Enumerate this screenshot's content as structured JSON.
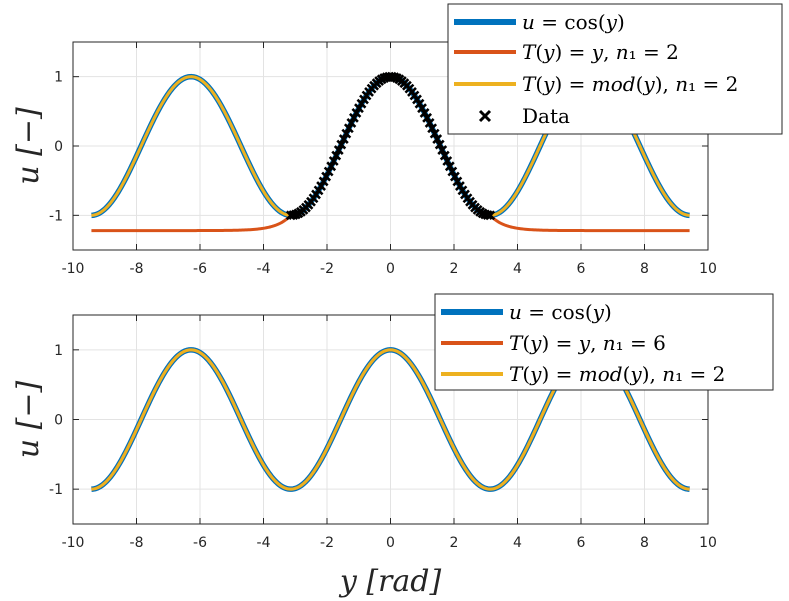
{
  "chart_data": [
    {
      "type": "line",
      "panel": "top",
      "ylabel": "u [−]",
      "xlim": [
        -10,
        10
      ],
      "ylim": [
        -1.5,
        1.5
      ],
      "xticks": [
        -10,
        -8,
        -6,
        -4,
        -2,
        0,
        2,
        4,
        6,
        8,
        10
      ],
      "yticks": [
        -1,
        0,
        1
      ],
      "grid": true,
      "legend_position": "top-right",
      "series": [
        {
          "name": "u = cos(y)",
          "color": "#0072BD",
          "function": "cos",
          "x_range": [
            -9.42,
            9.42
          ]
        },
        {
          "name": "T(y) = y, n₁ = 2",
          "color": "#D95319",
          "function": "tanh_fit",
          "x_range": [
            -9.42,
            9.42
          ],
          "plateau": -1.22
        },
        {
          "name": "T(y) = mod(y), n₁ = 2",
          "color": "#EDB120",
          "function": "cos",
          "x_range": [
            -9.42,
            9.42
          ]
        },
        {
          "name": "Data",
          "color": "#000000",
          "marker": "x",
          "function": "cos",
          "x_range": [
            -3.14,
            3.14
          ],
          "n_points": 80
        }
      ]
    },
    {
      "type": "line",
      "panel": "bottom",
      "ylabel": "u [−]",
      "xlabel": "y [rad]",
      "xlim": [
        -10,
        10
      ],
      "ylim": [
        -1.5,
        1.5
      ],
      "xticks": [
        -10,
        -8,
        -6,
        -4,
        -2,
        0,
        2,
        4,
        6,
        8,
        10
      ],
      "yticks": [
        -1,
        0,
        1
      ],
      "grid": true,
      "legend_position": "top-right",
      "series": [
        {
          "name": "u = cos(y)",
          "color": "#0072BD",
          "function": "cos",
          "x_range": [
            -9.42,
            9.42
          ]
        },
        {
          "name": "T(y) = y, n₁ = 6",
          "color": "#D95319",
          "function": "cos",
          "x_range": [
            -9.42,
            9.42
          ]
        },
        {
          "name": "T(y) = mod(y), n₁ = 2",
          "color": "#EDB120",
          "function": "cos",
          "x_range": [
            -9.42,
            9.42
          ]
        }
      ]
    }
  ]
}
